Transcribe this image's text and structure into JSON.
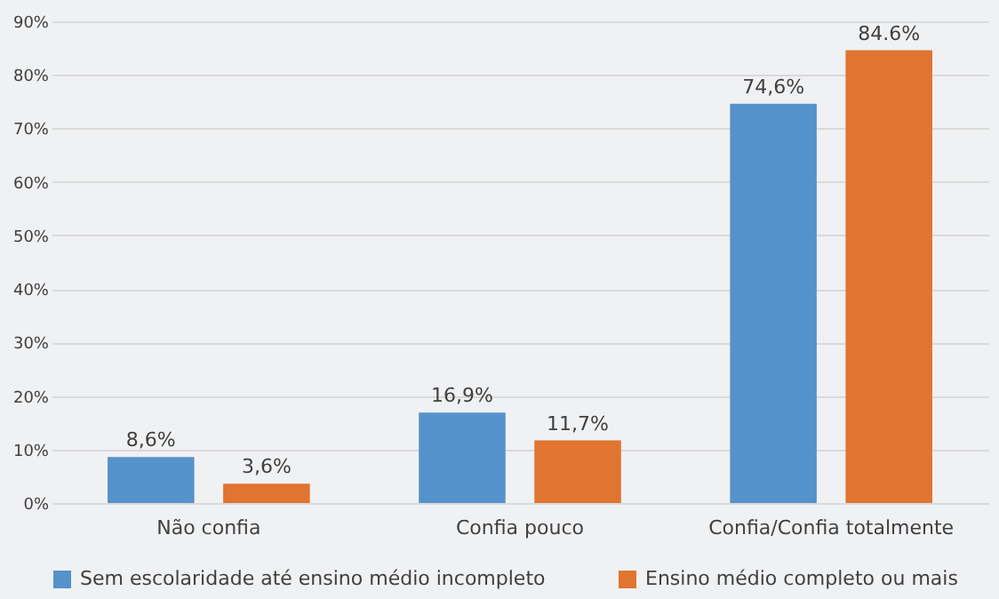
{
  "chart_data": {
    "type": "bar",
    "categories": [
      "Não confia",
      "Confia pouco",
      "Confia/Confia totalmente"
    ],
    "series": [
      {
        "name": "Sem escolaridade até ensino médio incompleto",
        "color": "#5592cb",
        "values": [
          8.6,
          16.9,
          74.6
        ],
        "value_labels": [
          "8,6%",
          "16,9%",
          "74,6%"
        ]
      },
      {
        "name": "Ensino médio completo ou mais",
        "color": "#e07430",
        "values": [
          3.6,
          11.7,
          84.6
        ],
        "value_labels": [
          "3,6%",
          "11,7%",
          "84.6%"
        ]
      }
    ],
    "ylim": [
      0,
      90
    ],
    "yticks": [
      {
        "value": 0,
        "label": "0%"
      },
      {
        "value": 10,
        "label": "10%"
      },
      {
        "value": 20,
        "label": "20%"
      },
      {
        "value": 30,
        "label": "30%"
      },
      {
        "value": 40,
        "label": "40%"
      },
      {
        "value": 50,
        "label": "50%"
      },
      {
        "value": 60,
        "label": "60%"
      },
      {
        "value": 70,
        "label": "70%"
      },
      {
        "value": 80,
        "label": "80%"
      },
      {
        "value": 90,
        "label": "90%"
      }
    ],
    "grid": "y",
    "legend": "bottom"
  }
}
